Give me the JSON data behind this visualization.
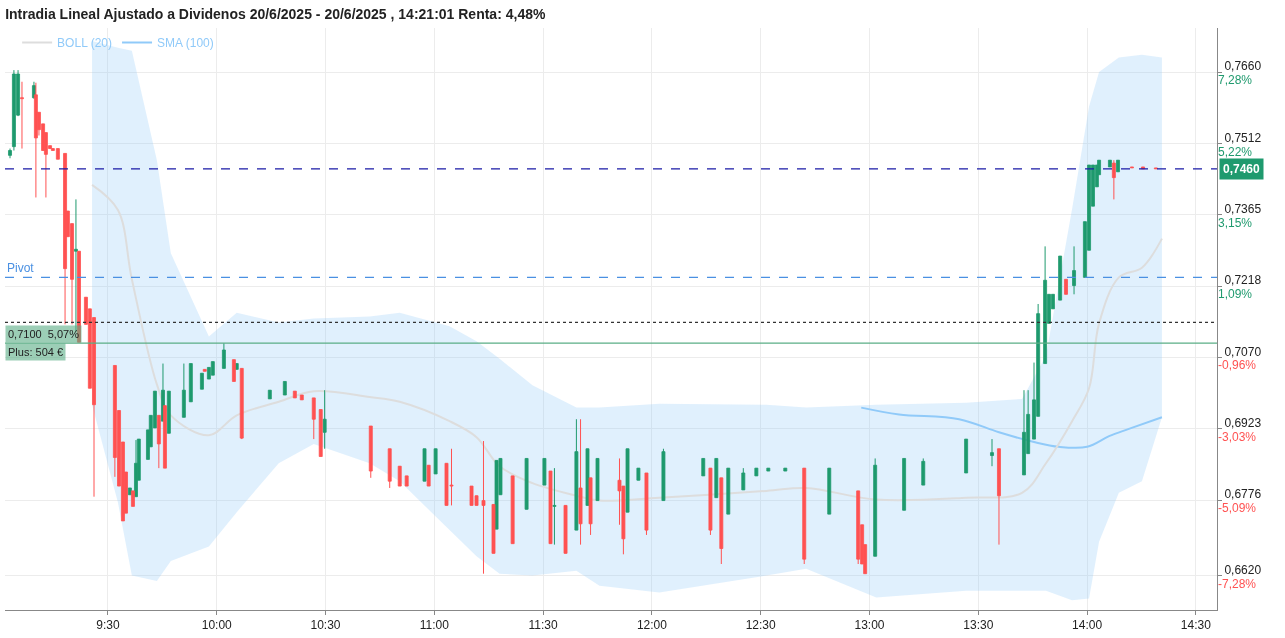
{
  "chart_data": {
    "type": "candlestick",
    "title": "Intradia Lineal Ajustado a Dividenos 20/6/2025 - 20/6/2025 , 14:21:01 Renta: 4,48%",
    "x": [
      9.05,
      9.068,
      9.087,
      9.105,
      9.16,
      9.169,
      9.183,
      9.202,
      9.215,
      9.234,
      9.247,
      9.27,
      9.303,
      9.316,
      9.335,
      9.353,
      9.367,
      9.399,
      9.417,
      9.436,
      9.532,
      9.551,
      9.569,
      9.583,
      9.601,
      9.615,
      9.629,
      9.642,
      9.684,
      9.697,
      9.716,
      9.734,
      9.753,
      9.762,
      9.78,
      9.849,
      9.881,
      9.932,
      9.945,
      9.964,
      9.982,
      10.033,
      10.079,
      10.092,
      10.115,
      10.244,
      10.313,
      10.359,
      10.391,
      10.446,
      10.478,
      10.496,
      10.708,
      10.795,
      10.841,
      10.873,
      10.955,
      10.974,
      11.006,
      11.056,
      11.079,
      11.171,
      11.194,
      11.226,
      11.272,
      11.286,
      11.304,
      11.36,
      11.424,
      11.506,
      11.534,
      11.552,
      11.603,
      11.653,
      11.672,
      11.704,
      11.718,
      11.75,
      11.851,
      11.869,
      11.888,
      11.938,
      11.975,
      12.053,
      12.236,
      12.269,
      12.296,
      12.319,
      12.351,
      12.42,
      12.48,
      12.535,
      12.613,
      12.7,
      12.815,
      12.948,
      12.966,
      12.98,
      13.026,
      13.159,
      13.247,
      13.444,
      13.563,
      13.595,
      13.71,
      13.729,
      13.756,
      13.775,
      13.807,
      13.825,
      13.843,
      13.876,
      13.903,
      13.94,
      13.99,
      14.009,
      14.027,
      14.045,
      14.055,
      14.105,
      14.123,
      14.142,
      14.206,
      14.257,
      14.316
    ],
    "ohlc": [
      [
        0.7488,
        0.7502,
        0.7482,
        0.7498
      ],
      [
        0.7506,
        0.7664,
        0.7498,
        0.7656
      ],
      [
        0.7571,
        0.7664,
        0.7569,
        0.7656
      ],
      [
        0.7607,
        0.764,
        0.7502,
        0.7605
      ],
      [
        0.7607,
        0.764,
        0.7605,
        0.7632
      ],
      [
        0.7613,
        0.7638,
        0.7401,
        0.7524
      ],
      [
        0.7577,
        0.7577,
        0.7529,
        0.7541
      ],
      [
        0.7553,
        0.7553,
        0.7498,
        0.7498
      ],
      [
        0.7535,
        0.7535,
        0.7401,
        0.749
      ],
      [
        0.7508,
        0.7508,
        0.7502,
        0.7502
      ],
      [
        0.7502,
        0.7502,
        0.7498,
        0.7498
      ],
      [
        0.7502,
        0.7502,
        0.748,
        0.748
      ],
      [
        0.7492,
        0.7492,
        0.7139,
        0.7254
      ],
      [
        0.7373,
        0.7373,
        0.732,
        0.732
      ],
      [
        0.7347,
        0.7347,
        0.7139,
        0.7232
      ],
      [
        0.729,
        0.7397,
        0.7124,
        0.7294
      ],
      [
        0.729,
        0.729,
        0.7102,
        0.7102
      ],
      [
        0.7195,
        0.7195,
        0.7139,
        0.7139
      ],
      [
        0.7171,
        0.7171,
        0.7007,
        0.7007
      ],
      [
        0.7153,
        0.7153,
        0.6783,
        0.6973
      ],
      [
        0.7054,
        0.7054,
        0.6824,
        0.6864
      ],
      [
        0.6961,
        0.6961,
        0.6805,
        0.6805
      ],
      [
        0.6896,
        0.6896,
        0.6733,
        0.6733
      ],
      [
        0.6834,
        0.6834,
        0.6749,
        0.6749
      ],
      [
        0.6787,
        0.6801,
        0.6787,
        0.6801
      ],
      [
        0.6795,
        0.6795,
        0.6763,
        0.6763
      ],
      [
        0.6783,
        0.69,
        0.6783,
        0.6852
      ],
      [
        0.6817,
        0.6902,
        0.6817,
        0.6902
      ],
      [
        0.686,
        0.6921,
        0.686,
        0.6921
      ],
      [
        0.6886,
        0.6951,
        0.6886,
        0.6951
      ],
      [
        0.6925,
        0.7001,
        0.6925,
        0.7001
      ],
      [
        0.6951,
        0.6951,
        0.6842,
        0.6892
      ],
      [
        0.6939,
        0.7058,
        0.6939,
        0.7003
      ],
      [
        0.6971,
        0.6971,
        0.6842,
        0.6842
      ],
      [
        0.6914,
        0.7001,
        0.6914,
        0.7001
      ],
      [
        0.6947,
        0.7058,
        0.6947,
        0.7003
      ],
      [
        0.6979,
        0.7058,
        0.6979,
        0.7058
      ],
      [
        0.7005,
        0.7038,
        0.7005,
        0.7038
      ],
      [
        0.7046,
        0.7046,
        0.7042,
        0.7042
      ],
      [
        0.7026,
        0.705,
        0.7026,
        0.705
      ],
      [
        0.7034,
        0.7062,
        0.7034,
        0.7062
      ],
      [
        0.7048,
        0.71,
        0.7048,
        0.7086
      ],
      [
        0.7066,
        0.7066,
        0.7021,
        0.7021
      ],
      [
        0.7046,
        0.7058,
        0.7046,
        0.7058
      ],
      [
        0.7048,
        0.7048,
        0.6902,
        0.6904
      ],
      [
        0.6985,
        0.7003,
        0.6985,
        0.7003
      ],
      [
        0.6993,
        0.7021,
        0.6993,
        0.7021
      ],
      [
        0.7001,
        0.7001,
        0.6987,
        0.6987
      ],
      [
        0.6993,
        0.6993,
        0.6983,
        0.6983
      ],
      [
        0.6987,
        0.6987,
        0.6902,
        0.6943
      ],
      [
        0.6963,
        0.6963,
        0.6866,
        0.6866
      ],
      [
        0.6916,
        0.7003,
        0.6882,
        0.6943
      ],
      [
        0.6929,
        0.6929,
        0.6822,
        0.6836
      ],
      [
        0.6882,
        0.6882,
        0.6801,
        0.6815
      ],
      [
        0.6846,
        0.6846,
        0.6805,
        0.6805
      ],
      [
        0.6826,
        0.6826,
        0.6805,
        0.6805
      ],
      [
        0.6815,
        0.6882,
        0.6815,
        0.6882
      ],
      [
        0.6848,
        0.6848,
        0.6805,
        0.6805
      ],
      [
        0.683,
        0.6882,
        0.683,
        0.6882
      ],
      [
        0.6852,
        0.6852,
        0.6765,
        0.6765
      ],
      [
        0.6807,
        0.6882,
        0.6765,
        0.6805
      ],
      [
        0.6805,
        0.6805,
        0.6765,
        0.6765
      ],
      [
        0.6785,
        0.6785,
        0.6765,
        0.6765
      ],
      [
        0.6775,
        0.6898,
        0.6624,
        0.6765
      ],
      [
        0.6767,
        0.6767,
        0.6666,
        0.6666
      ],
      [
        0.6716,
        0.6858,
        0.6716,
        0.6858
      ],
      [
        0.6787,
        0.6862,
        0.6787,
        0.6862
      ],
      [
        0.6826,
        0.6826,
        0.6686,
        0.6686
      ],
      [
        0.6757,
        0.6862,
        0.6757,
        0.6862
      ],
      [
        0.6807,
        0.6862,
        0.6807,
        0.6862
      ],
      [
        0.6836,
        0.6836,
        0.6686,
        0.6686
      ],
      [
        0.6763,
        0.6842,
        0.6684,
        0.6765
      ],
      [
        0.6765,
        0.6765,
        0.6666,
        0.6666
      ],
      [
        0.6714,
        0.6943,
        0.6714,
        0.6876
      ],
      [
        0.6801,
        0.6943,
        0.6684,
        0.6727
      ],
      [
        0.6765,
        0.6882,
        0.6765,
        0.6882
      ],
      [
        0.6822,
        0.6822,
        0.6704,
        0.6727
      ],
      [
        0.6775,
        0.6862,
        0.6775,
        0.6862
      ],
      [
        0.6817,
        0.6862,
        0.6725,
        0.6795
      ],
      [
        0.6805,
        0.6805,
        0.6664,
        0.6696
      ],
      [
        0.6751,
        0.6882,
        0.6751,
        0.6882
      ],
      [
        0.6817,
        0.6842,
        0.6817,
        0.6842
      ],
      [
        0.6832,
        0.6832,
        0.6704,
        0.6714
      ],
      [
        0.6775,
        0.6882,
        0.6775,
        0.6876
      ],
      [
        0.6826,
        0.6862,
        0.6826,
        0.6862
      ],
      [
        0.6842,
        0.6842,
        0.6704,
        0.6714
      ],
      [
        0.6781,
        0.6862,
        0.6781,
        0.6862
      ],
      [
        0.6822,
        0.6822,
        0.6644,
        0.6676
      ],
      [
        0.6747,
        0.6842,
        0.6747,
        0.6842
      ],
      [
        0.6797,
        0.6842,
        0.6797,
        0.6832
      ],
      [
        0.6826,
        0.6842,
        0.6826,
        0.6842
      ],
      [
        0.6836,
        0.6842,
        0.6836,
        0.6842
      ],
      [
        0.6836,
        0.6842,
        0.6836,
        0.6842
      ],
      [
        0.6842,
        0.6842,
        0.6644,
        0.6654
      ],
      [
        0.6747,
        0.6842,
        0.6747,
        0.6842
      ],
      [
        0.6795,
        0.6795,
        0.6644,
        0.6654
      ],
      [
        0.6725,
        0.6725,
        0.6644,
        0.6644
      ],
      [
        0.6684,
        0.6684,
        0.6624,
        0.6624
      ],
      [
        0.666,
        0.6862,
        0.666,
        0.6848
      ],
      [
        0.6755,
        0.6862,
        0.6755,
        0.6862
      ],
      [
        0.6807,
        0.6862,
        0.6807,
        0.6856
      ],
      [
        0.6832,
        0.6902,
        0.6832,
        0.6902
      ],
      [
        0.6868,
        0.6902,
        0.6846,
        0.6874
      ],
      [
        0.6882,
        0.6882,
        0.6684,
        0.6785
      ],
      [
        0.6828,
        0.7003,
        0.6828,
        0.6916
      ],
      [
        0.6872,
        0.7003,
        0.6872,
        0.6953
      ],
      [
        0.6902,
        0.706,
        0.6902,
        0.6983
      ],
      [
        0.6949,
        0.7181,
        0.6949,
        0.7161
      ],
      [
        0.7058,
        0.73,
        0.7058,
        0.723
      ],
      [
        0.7141,
        0.7201,
        0.7141,
        0.7201
      ],
      [
        0.7171,
        0.7201,
        0.7171,
        0.7201
      ],
      [
        0.7189,
        0.728,
        0.7189,
        0.728
      ],
      [
        0.7232,
        0.7232,
        0.7201,
        0.7201
      ],
      [
        0.7219,
        0.73,
        0.7201,
        0.725
      ],
      [
        0.7236,
        0.7351,
        0.7236,
        0.7351
      ],
      [
        0.7292,
        0.7468,
        0.7292,
        0.7468
      ],
      [
        0.7383,
        0.7468,
        0.7383,
        0.7468
      ],
      [
        0.7423,
        0.7468,
        0.7423,
        0.7468
      ],
      [
        0.7448,
        0.7478,
        0.7448,
        0.7478
      ],
      [
        0.7464,
        0.7478,
        0.7464,
        0.7478
      ],
      [
        0.7472,
        0.7478,
        0.7397,
        0.7442
      ],
      [
        0.7454,
        0.7478,
        0.7454,
        0.7478
      ],
      [
        0.7464,
        0.7464,
        0.7462,
        0.7462
      ],
      [
        0.7464,
        0.7464,
        0.746,
        0.746
      ],
      [
        0.7462,
        0.7462,
        0.746,
        0.746
      ]
    ],
    "series": [
      {
        "name": "SMA (100)",
        "type": "line",
        "color": "#90caf9",
        "x": [
          12.962,
          13.136,
          13.412,
          13.595,
          13.756,
          13.871,
          14.0,
          14.101,
          14.192,
          14.344
        ],
        "values": [
          0.6967,
          0.6953,
          0.6943,
          0.6916,
          0.6896,
          0.6886,
          0.6886,
          0.6908,
          0.6923,
          0.6947
        ]
      },
      {
        "name": "BOLL (20)",
        "type": "line",
        "color": "#dddddd",
        "x": [
          9.427,
          9.546,
          9.61,
          9.725,
          9.789,
          9.964,
          10.092,
          10.285,
          10.446,
          10.703,
          10.841,
          11.07,
          11.194,
          11.3,
          11.451,
          11.653,
          11.759,
          12.034,
          12.526,
          12.709,
          13.031,
          13.444,
          13.701,
          13.811,
          13.931,
          14.009,
          14.055,
          14.146,
          14.252,
          14.344
        ],
        "values": [
          0.7427,
          0.7375,
          0.7232,
          0.7015,
          0.6951,
          0.691,
          0.6951,
          0.6979,
          0.7001,
          0.6989,
          0.6979,
          0.6939,
          0.6906,
          0.6846,
          0.6811,
          0.6785,
          0.6775,
          0.6781,
          0.6795,
          0.6801,
          0.6777,
          0.6781,
          0.6791,
          0.6852,
          0.6939,
          0.7007,
          0.7141,
          0.7236,
          0.7256,
          0.7316
        ],
        "upper": [
          0.7724,
          0.771,
          0.7704,
          0.7478,
          0.7286,
          0.7114,
          0.7163,
          0.7143,
          0.7151,
          0.7155,
          0.7163,
          0.7135,
          0.7104,
          0.7068,
          0.7013,
          0.6967,
          0.6967,
          0.6975,
          0.6973,
          0.6967,
          0.6973,
          0.6977,
          0.6985,
          0.7074,
          0.7377,
          0.7589,
          0.766,
          0.769,
          0.7696,
          0.769
        ],
        "lower": [
          0.6973,
          0.6771,
          0.662,
          0.6609,
          0.665,
          0.668,
          0.6751,
          0.6852,
          0.6892,
          0.6852,
          0.6815,
          0.6714,
          0.666,
          0.6624,
          0.662,
          0.663,
          0.6599,
          0.6585,
          0.662,
          0.6634,
          0.6575,
          0.6589,
          0.6589,
          0.6589,
          0.6569,
          0.6573,
          0.669,
          0.6791,
          0.6815,
          0.6947
        ]
      }
    ],
    "xlim": [
      9.027,
      14.597
    ],
    "xticks": [
      {
        "value": 9.5,
        "label": "9:30"
      },
      {
        "value": 10,
        "label": "10:00"
      },
      {
        "value": 10.5,
        "label": "10:30"
      },
      {
        "value": 11,
        "label": "11:00"
      },
      {
        "value": 11.5,
        "label": "11:30"
      },
      {
        "value": 12,
        "label": "12:00"
      },
      {
        "value": 12.5,
        "label": "12:30"
      },
      {
        "value": 13,
        "label": "13:00"
      },
      {
        "value": 13.5,
        "label": "13:30"
      },
      {
        "value": 14,
        "label": "14:00"
      },
      {
        "value": 14.5,
        "label": "14:30"
      }
    ],
    "ylim": [
      0.6549,
      0.7751
    ],
    "yticks": [
      {
        "value": 0.766,
        "label": "0,7660"
      },
      {
        "value": 0.7512,
        "label": "0,7512"
      },
      {
        "value": 0.7365,
        "label": "0,7365"
      },
      {
        "value": 0.7218,
        "label": "0,7218"
      },
      {
        "value": 0.707,
        "label": "0,7070"
      },
      {
        "value": 0.6923,
        "label": "0,6923"
      },
      {
        "value": 0.6776,
        "label": "0,6776"
      },
      {
        "value": 0.662,
        "label": "0,6620"
      }
    ],
    "y2lim": [
      -8.28,
      8.56
    ],
    "y2ticks": [
      {
        "value": 7.28,
        "label": "7,28%"
      },
      {
        "value": 5.22,
        "label": "5,22%"
      },
      {
        "value": 3.15,
        "label": "3,15%"
      },
      {
        "value": 1.09,
        "label": "1,09%"
      },
      {
        "value": -0.96,
        "label": "-0,96%"
      },
      {
        "value": -3.03,
        "label": "-3,03%"
      },
      {
        "value": -5.09,
        "label": "-5,09%"
      },
      {
        "value": -7.28,
        "label": "-7,28%"
      }
    ],
    "ref_lines": [
      {
        "axis": "y",
        "value": 0.746,
        "label": "0,7460",
        "color": "#1a1aa6",
        "line_style": "dashed"
      },
      {
        "axis": "y",
        "value": 0.7236,
        "label": "Pivot",
        "color": "#4a90e2",
        "line_style": "dashed"
      },
      {
        "axis": "y",
        "value": 0.7143,
        "color": "#333333",
        "line_style": "dotted"
      },
      {
        "axis": "y",
        "value": 0.71,
        "label": "0,7100  5,07%",
        "color": "#5aae86",
        "line_style": "solid"
      }
    ],
    "annotations": [
      {
        "text": "Plus: 504 €",
        "y": 0.71
      }
    ],
    "grid": true,
    "legend": "top left"
  }
}
